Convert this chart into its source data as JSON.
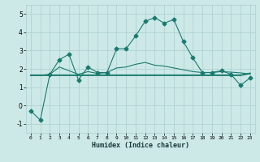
{
  "xlabel": "Humidex (Indice chaleur)",
  "x_values": [
    0,
    1,
    2,
    3,
    4,
    5,
    6,
    7,
    8,
    9,
    10,
    11,
    12,
    13,
    14,
    15,
    16,
    17,
    18,
    19,
    20,
    21,
    22,
    23
  ],
  "main_line": [
    -0.3,
    -0.8,
    1.7,
    2.5,
    2.8,
    1.4,
    2.1,
    1.8,
    1.8,
    3.1,
    3.1,
    3.8,
    4.6,
    4.8,
    4.5,
    4.7,
    3.5,
    2.6,
    1.8,
    1.8,
    1.9,
    1.7,
    1.1,
    1.5
  ],
  "reg_line": [
    1.65,
    1.65,
    1.65,
    1.65,
    1.65,
    1.65,
    1.65,
    1.65,
    1.65,
    1.65,
    1.65,
    1.65,
    1.65,
    1.65,
    1.65,
    1.65,
    1.65,
    1.65,
    1.65,
    1.65,
    1.65,
    1.65,
    1.65,
    1.75
  ],
  "smooth_line": [
    1.65,
    1.65,
    1.7,
    2.1,
    1.9,
    1.7,
    1.85,
    1.75,
    1.8,
    2.05,
    2.1,
    2.25,
    2.35,
    2.2,
    2.15,
    2.05,
    1.95,
    1.85,
    1.8,
    1.8,
    1.85,
    1.82,
    1.78,
    1.72
  ],
  "line_color": "#1a7a6e",
  "bg_color": "#cce9e7",
  "grid_color": "#aacfcd",
  "ylim": [
    -1.5,
    5.5
  ],
  "xlim": [
    -0.5,
    23.5
  ],
  "yticks": [
    -1,
    0,
    1,
    2,
    3,
    4,
    5
  ],
  "xticks": [
    0,
    1,
    2,
    3,
    4,
    5,
    6,
    7,
    8,
    9,
    10,
    11,
    12,
    13,
    14,
    15,
    16,
    17,
    18,
    19,
    20,
    21,
    22,
    23
  ]
}
